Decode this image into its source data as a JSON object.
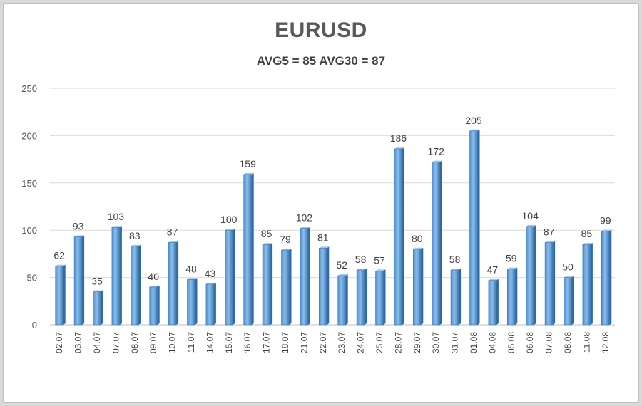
{
  "chart_data": {
    "type": "bar",
    "title": "EURUSD",
    "subtitle": "AVG5 = 85 AVG30 = 87",
    "xlabel": "",
    "ylabel": "",
    "ylim": [
      0,
      250
    ],
    "yticks": [
      0,
      50,
      100,
      150,
      200,
      250
    ],
    "grid": true,
    "legend": "none",
    "bar_color": "#5b9bd5",
    "categories": [
      "02.07",
      "03.07",
      "04.07",
      "07.07",
      "08.07",
      "09.07",
      "10.07",
      "11.07",
      "14.07",
      "15.07",
      "16.07",
      "17.07",
      "18.07",
      "21.07",
      "22.07",
      "23.07",
      "24.07",
      "25.07",
      "28.07",
      "29.07",
      "30.07",
      "31.07",
      "01.08",
      "04.08",
      "05.08",
      "06.08",
      "07.08",
      "08.08",
      "11.08",
      "12.08"
    ],
    "values": [
      62,
      93,
      35,
      103,
      83,
      40,
      87,
      48,
      43,
      100,
      159,
      85,
      79,
      102,
      81,
      52,
      58,
      57,
      186,
      80,
      172,
      58,
      205,
      47,
      59,
      104,
      87,
      50,
      85,
      99
    ]
  }
}
